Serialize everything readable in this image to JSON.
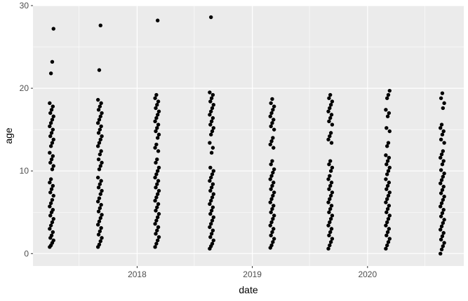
{
  "chart_data": {
    "type": "scatter",
    "title": "",
    "xlabel": "date",
    "ylabel": "age",
    "x_axis_type": "date",
    "xlim": [
      "2017-02-05",
      "2020-11-01"
    ],
    "ylim": [
      -1.5,
      30
    ],
    "x_ticks": [
      "2018",
      "2019",
      "2020"
    ],
    "y_ticks": [
      0,
      10,
      20,
      30
    ],
    "grid": true,
    "background": "#ebebeb",
    "point_color": "#000000",
    "groups": [
      {
        "x": "2017-04-05",
        "y": [
          0.8,
          1.0,
          1.3,
          1.6,
          1.9,
          2.2,
          2.6,
          3.0,
          3.4,
          3.8,
          4.2,
          4.6,
          5.0,
          5.3,
          5.7,
          6.1,
          6.5,
          7.0,
          7.4,
          7.8,
          8.2,
          8.6,
          9.0,
          10.2,
          10.6,
          11.0,
          11.4,
          11.8,
          12.2,
          13.0,
          13.4,
          13.8,
          14.2,
          14.6,
          15.0,
          15.4,
          15.8,
          16.2,
          16.6,
          17.0,
          17.4,
          17.8,
          18.2,
          21.8,
          23.2,
          27.2
        ]
      },
      {
        "x": "2017-09-05",
        "y": [
          0.8,
          1.1,
          1.5,
          1.9,
          2.3,
          2.7,
          3.1,
          3.5,
          3.9,
          4.3,
          4.7,
          5.1,
          5.5,
          5.9,
          6.3,
          6.7,
          7.2,
          7.6,
          8.0,
          8.4,
          8.8,
          9.2,
          10.2,
          10.6,
          11.0,
          11.4,
          12.0,
          12.4,
          13.0,
          13.4,
          13.8,
          14.2,
          14.6,
          15.0,
          15.4,
          15.8,
          16.2,
          16.6,
          17.0,
          17.4,
          17.8,
          18.2,
          18.6,
          22.2,
          27.6
        ]
      },
      {
        "x": "2018-03-05",
        "y": [
          0.8,
          1.2,
          1.6,
          2.0,
          2.4,
          2.8,
          3.2,
          3.6,
          4.0,
          4.4,
          4.8,
          5.2,
          5.6,
          6.0,
          6.4,
          6.8,
          7.2,
          7.6,
          8.0,
          8.4,
          8.8,
          9.2,
          9.6,
          10.0,
          10.4,
          11.0,
          11.4,
          12.4,
          12.8,
          13.2,
          14.0,
          14.4,
          14.8,
          15.2,
          15.6,
          16.0,
          16.4,
          16.8,
          17.2,
          17.6,
          18.0,
          18.4,
          18.8,
          19.2,
          28.2
        ]
      },
      {
        "x": "2018-08-25",
        "y": [
          0.6,
          0.9,
          1.2,
          1.6,
          2.0,
          2.4,
          2.8,
          3.2,
          3.6,
          4.0,
          4.4,
          4.8,
          5.2,
          5.6,
          6.0,
          6.4,
          6.8,
          7.2,
          7.6,
          8.0,
          8.4,
          8.8,
          9.2,
          9.6,
          10.0,
          10.4,
          12.2,
          12.8,
          13.4,
          14.4,
          14.8,
          15.2,
          15.6,
          16.0,
          16.4,
          16.8,
          17.2,
          17.6,
          18.0,
          18.4,
          18.8,
          19.2,
          19.5,
          28.6
        ]
      },
      {
        "x": "2019-03-05",
        "y": [
          0.7,
          1.0,
          1.4,
          1.8,
          2.2,
          2.6,
          3.0,
          3.4,
          3.8,
          4.2,
          4.6,
          5.0,
          5.4,
          5.8,
          6.2,
          6.6,
          7.0,
          7.4,
          7.8,
          8.2,
          8.6,
          9.0,
          9.4,
          9.8,
          10.2,
          10.8,
          11.2,
          12.8,
          13.2,
          13.6,
          14.0,
          15.0,
          15.4,
          15.8,
          16.2,
          16.6,
          17.0,
          17.4,
          17.8,
          18.2,
          18.7
        ]
      },
      {
        "x": "2019-09-05",
        "y": [
          0.6,
          1.0,
          1.4,
          1.8,
          2.2,
          2.6,
          3.0,
          3.4,
          3.8,
          4.2,
          4.6,
          5.0,
          5.4,
          5.8,
          6.2,
          6.6,
          7.0,
          7.4,
          7.8,
          8.2,
          8.6,
          9.0,
          9.4,
          10.0,
          10.4,
          10.8,
          11.2,
          13.4,
          13.8,
          14.2,
          14.6,
          15.6,
          16.0,
          16.4,
          16.8,
          17.2,
          17.6,
          18.0,
          18.4,
          18.8,
          19.2
        ]
      },
      {
        "x": "2020-03-05",
        "y": [
          0.6,
          1.0,
          1.4,
          1.8,
          2.2,
          2.6,
          3.0,
          3.4,
          3.8,
          4.2,
          4.6,
          5.0,
          5.4,
          5.8,
          6.2,
          6.6,
          7.0,
          7.4,
          7.8,
          8.2,
          8.6,
          9.0,
          9.6,
          10.0,
          10.4,
          10.8,
          11.2,
          11.6,
          11.9,
          13.0,
          13.4,
          14.8,
          15.2,
          16.6,
          17.0,
          17.4,
          18.8,
          19.2,
          19.7
        ]
      },
      {
        "x": "2020-08-25",
        "y": [
          0.0,
          0.5,
          0.9,
          1.3,
          1.7,
          2.1,
          2.5,
          2.9,
          3.3,
          3.7,
          4.1,
          4.5,
          4.9,
          5.3,
          5.7,
          6.1,
          6.5,
          6.9,
          7.3,
          7.7,
          8.1,
          8.5,
          8.9,
          9.3,
          9.7,
          10.1,
          10.8,
          11.2,
          11.6,
          12.0,
          12.4,
          13.4,
          13.8,
          14.4,
          14.8,
          15.2,
          15.6,
          17.6,
          18.2,
          18.8,
          19.4
        ]
      }
    ]
  }
}
